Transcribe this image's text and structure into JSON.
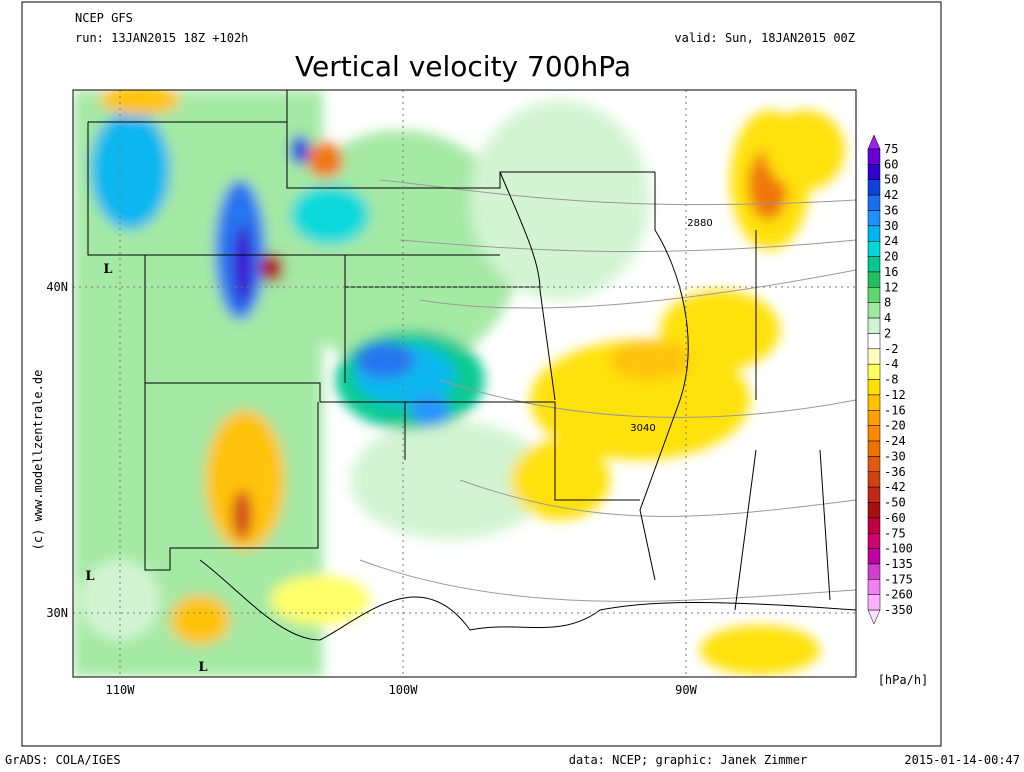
{
  "header": {
    "model": "NCEP GFS",
    "run": "run: 13JAN2015 18Z +102h",
    "valid": "valid: Sun, 18JAN2015 00Z",
    "title": "Vertical velocity 700hPa"
  },
  "copyright": "(c) www.modellzentrale.de",
  "map": {
    "lat_labels": [
      "40N",
      "30N"
    ],
    "lon_labels": [
      "110W",
      "100W",
      "90W"
    ],
    "contour_labels": [
      "2880",
      "3040"
    ],
    "low_markers": [
      "L",
      "L",
      "L"
    ]
  },
  "colorbar": {
    "unit": "[hPa/h]",
    "labels": [
      "75",
      "60",
      "50",
      "42",
      "36",
      "30",
      "24",
      "20",
      "16",
      "12",
      "8",
      "4",
      "2",
      "-2",
      "-4",
      "-8",
      "-12",
      "-16",
      "-20",
      "-24",
      "-30",
      "-36",
      "-42",
      "-50",
      "-60",
      "-75",
      "-100",
      "-135",
      "-175",
      "-260",
      "-350"
    ],
    "colors": [
      "#a020f0",
      "#6a00d8",
      "#3000d0",
      "#1040e0",
      "#1c6ef0",
      "#1e90ff",
      "#00b4f0",
      "#00d8d8",
      "#00c890",
      "#20c060",
      "#60d870",
      "#a0e8a0",
      "#d0f4d0",
      "#ffffff",
      "#ffffc0",
      "#ffff60",
      "#ffe000",
      "#ffc000",
      "#ffa000",
      "#ff8800",
      "#f07000",
      "#e05a10",
      "#d04010",
      "#c02818",
      "#a81010",
      "#c00040",
      "#d00070",
      "#c000a0",
      "#d040d0",
      "#f080f0",
      "#ffb0ff",
      "#ffe0ff"
    ]
  },
  "footer": {
    "software": "GrADS: COLA/IGES",
    "credit": "data: NCEP; graphic: Janek Zimmer",
    "timestamp": "2015-01-14-00:47"
  }
}
